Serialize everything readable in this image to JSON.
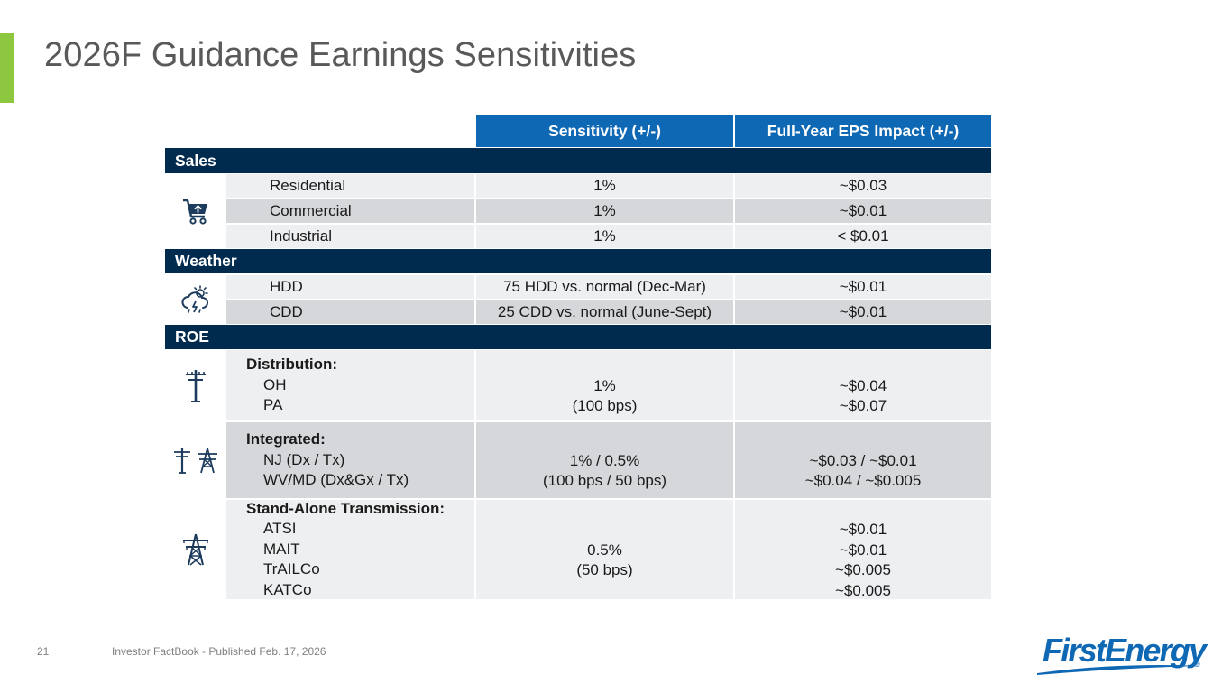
{
  "title": "2026F Guidance Earnings Sensitivities",
  "colors": {
    "accent_green": "#8dc63f",
    "header_blue": "#0f68b4",
    "section_navy": "#002a4e",
    "row_light": "#eeeff1",
    "row_dark": "#d5d7db"
  },
  "table": {
    "headers": {
      "sensitivity": "Sensitivity (+/-)",
      "eps_impact": "Full-Year EPS Impact (+/-)"
    },
    "sales": {
      "label": "Sales",
      "icon": "shopping-cart-icon",
      "rows": [
        {
          "item": "Residential",
          "sensitivity": "1%",
          "eps": "~$0.03"
        },
        {
          "item": "Commercial",
          "sensitivity": "1%",
          "eps": "~$0.01"
        },
        {
          "item": "Industrial",
          "sensitivity": "1%",
          "eps": "< $0.01"
        }
      ]
    },
    "weather": {
      "label": "Weather",
      "icon": "storm-cloud-icon",
      "rows": [
        {
          "item": "HDD",
          "sensitivity": "75 HDD vs. normal (Dec-Mar)",
          "eps": "~$0.01"
        },
        {
          "item": "CDD",
          "sensitivity": "25 CDD vs. normal (June-Sept)",
          "eps": "~$0.01"
        }
      ]
    },
    "roe": {
      "label": "ROE",
      "distribution": {
        "icon": "utility-pole-icon",
        "title": "Distribution:",
        "items": [
          "OH",
          "PA"
        ],
        "sensitivity": [
          "1%",
          "(100 bps)"
        ],
        "eps": [
          "~$0.04",
          "~$0.07"
        ]
      },
      "integrated": {
        "icon": "pole-and-tower-icon",
        "title": "Integrated:",
        "items": [
          "NJ (Dx / Tx)",
          "WV/MD (Dx&Gx / Tx)"
        ],
        "sensitivity": [
          "1% / 0.5%",
          "(100 bps / 50 bps)"
        ],
        "eps": [
          "~$0.03 / ~$0.01",
          "~$0.04 / ~$0.005"
        ]
      },
      "transmission": {
        "icon": "transmission-tower-icon",
        "title": "Stand-Alone Transmission:",
        "items": [
          "ATSI",
          "MAIT",
          "TrAILCo",
          "KATCo"
        ],
        "sensitivity": [
          "0.5%",
          "(50 bps)"
        ],
        "eps": [
          "~$0.01",
          "~$0.01",
          "~$0.005",
          "~$0.005"
        ]
      }
    }
  },
  "footer": {
    "page_number": "21",
    "text": "Investor FactBook - Published Feb. 17, 2026"
  },
  "logo": {
    "text": "FirstEnergy",
    "reg": "®"
  }
}
